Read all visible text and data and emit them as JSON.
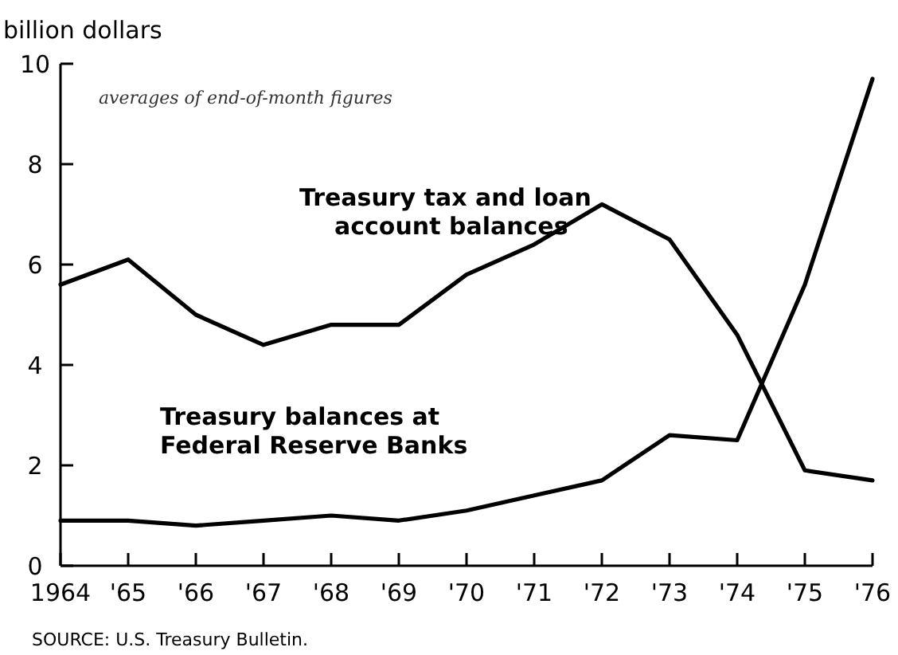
{
  "chart_data": {
    "type": "line",
    "ylabel": "billion dollars",
    "x": [
      1964,
      1965,
      1966,
      1967,
      1968,
      1969,
      1970,
      1971,
      1972,
      1973,
      1974,
      1975,
      1976
    ],
    "xlim": [
      1964,
      1976
    ],
    "xticks": [
      {
        "value": 1964,
        "label": "1964"
      },
      {
        "value": 1965,
        "label": "'65"
      },
      {
        "value": 1966,
        "label": "'66"
      },
      {
        "value": 1967,
        "label": "'67"
      },
      {
        "value": 1968,
        "label": "'68"
      },
      {
        "value": 1969,
        "label": "'69"
      },
      {
        "value": 1970,
        "label": "'70"
      },
      {
        "value": 1971,
        "label": "'71"
      },
      {
        "value": 1972,
        "label": "'72"
      },
      {
        "value": 1973,
        "label": "'73"
      },
      {
        "value": 1974,
        "label": "'74"
      },
      {
        "value": 1975,
        "label": "'75"
      },
      {
        "value": 1976,
        "label": "'76"
      }
    ],
    "ylim": [
      0,
      10
    ],
    "yticks": [
      0,
      2,
      4,
      6,
      8,
      10
    ],
    "grid": false,
    "legend": false,
    "marker": "none",
    "line_style": "solid",
    "series": [
      {
        "name": "Treasury tax and loan\naccount balances",
        "color": "#000000",
        "values": [
          5.6,
          6.1,
          5.0,
          4.4,
          4.8,
          4.8,
          5.8,
          6.4,
          7.2,
          6.5,
          4.6,
          1.9,
          1.7
        ]
      },
      {
        "name": "Treasury balances at\nFederal Reserve Banks",
        "color": "#000000",
        "values": [
          0.9,
          0.9,
          0.8,
          0.9,
          1.0,
          0.9,
          1.1,
          1.4,
          1.7,
          2.6,
          2.5,
          5.6,
          9.7
        ]
      }
    ],
    "annotations": [
      "averages of end-of-month figures",
      "SOURCE: U.S. Treasury Bulletin."
    ]
  }
}
